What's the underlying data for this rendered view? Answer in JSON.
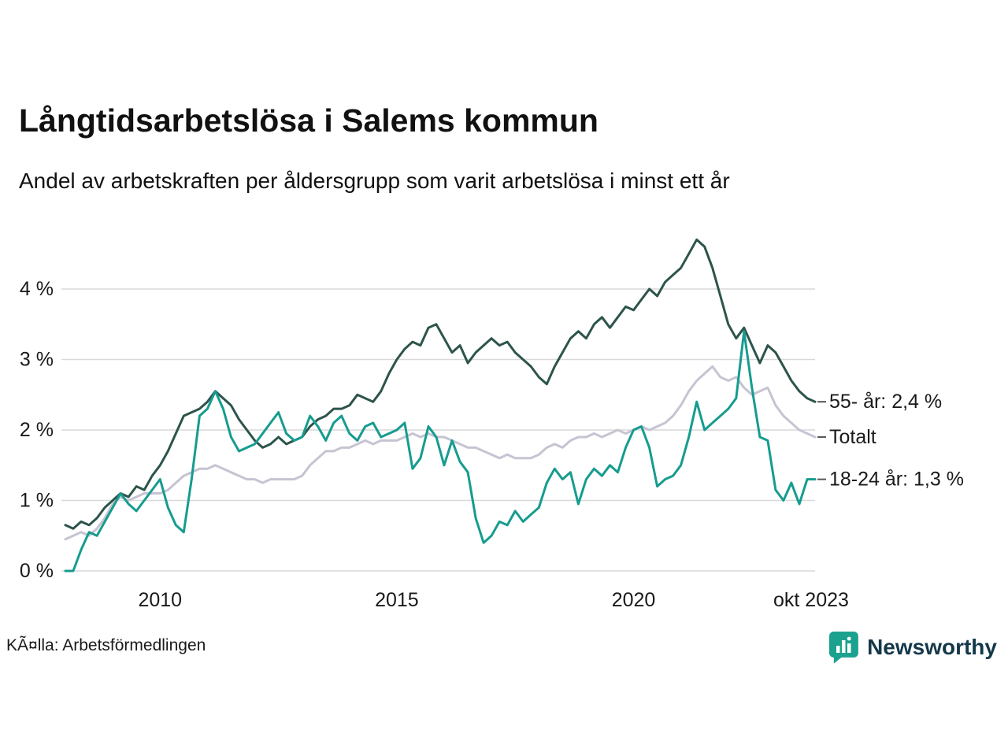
{
  "page": {
    "title": "Långtidsarbetslösa i Salems kommun",
    "subtitle": "Andel av arbetskraften per åldersgrupp som varit arbetslösa i minst ett år",
    "source": "KÃ¤lla: Arbetsförmedlingen",
    "brand": "Newsworthy"
  },
  "colors": {
    "series_total": "#c6c4d2",
    "series_55": "#2d544c",
    "series_18_24": "#169c8f",
    "grid": "#d9d9d9",
    "text": "#1a1a1a",
    "brand_teal": "#1ba28e",
    "brand_dark": "#14384a"
  },
  "chart_data": {
    "type": "line",
    "title": "Långtidsarbetslösa i Salems kommun",
    "subtitle": "Andel av arbetskraften per åldersgrupp som varit arbetslösa i minst ett år",
    "x_unit": "year_decimal_monthly",
    "x_start": 2008.0,
    "x_step": 0.166667,
    "x_range": [
      2008.0,
      2023.8333
    ],
    "ylim": [
      0,
      4.75
    ],
    "grid": true,
    "y_ticks": [
      {
        "value": 0,
        "label": "0 %"
      },
      {
        "value": 1,
        "label": "1 %"
      },
      {
        "value": 2,
        "label": "2 %"
      },
      {
        "value": 3,
        "label": "3 %"
      },
      {
        "value": 4,
        "label": "4 %"
      }
    ],
    "x_ticks": [
      {
        "value": 2010,
        "label": "2010"
      },
      {
        "value": 2015,
        "label": "2015"
      },
      {
        "value": 2020,
        "label": "2020"
      },
      {
        "value": 2023.75,
        "label": "okt 2023"
      }
    ],
    "series": [
      {
        "name": "Totalt",
        "color": "#c6c4d2",
        "end_label": "Totalt",
        "label_value": 1.9,
        "values": [
          0.45,
          0.5,
          0.55,
          0.5,
          0.6,
          0.75,
          0.95,
          1.05,
          1.0,
          1.05,
          1.1,
          1.1,
          1.1,
          1.15,
          1.25,
          1.35,
          1.4,
          1.45,
          1.45,
          1.5,
          1.45,
          1.4,
          1.35,
          1.3,
          1.3,
          1.25,
          1.3,
          1.3,
          1.3,
          1.3,
          1.35,
          1.5,
          1.6,
          1.7,
          1.7,
          1.75,
          1.75,
          1.8,
          1.85,
          1.8,
          1.85,
          1.85,
          1.85,
          1.9,
          1.95,
          1.9,
          1.95,
          1.9,
          1.9,
          1.85,
          1.8,
          1.75,
          1.75,
          1.7,
          1.65,
          1.6,
          1.65,
          1.6,
          1.6,
          1.6,
          1.65,
          1.75,
          1.8,
          1.75,
          1.85,
          1.9,
          1.9,
          1.95,
          1.9,
          1.95,
          2.0,
          1.95,
          2.0,
          2.05,
          2.0,
          2.05,
          2.1,
          2.2,
          2.35,
          2.55,
          2.7,
          2.8,
          2.9,
          2.75,
          2.7,
          2.75,
          2.6,
          2.5,
          2.55,
          2.6,
          2.35,
          2.2,
          2.1,
          2.0,
          1.95,
          1.9
        ]
      },
      {
        "name": "55- år",
        "color": "#2d544c",
        "end_label": "55- år: 2,4 %",
        "label_value": 2.4,
        "values": [
          0.65,
          0.6,
          0.7,
          0.65,
          0.75,
          0.9,
          1.0,
          1.1,
          1.05,
          1.2,
          1.15,
          1.35,
          1.5,
          1.7,
          1.95,
          2.2,
          2.25,
          2.3,
          2.4,
          2.55,
          2.45,
          2.35,
          2.15,
          2.0,
          1.85,
          1.75,
          1.8,
          1.9,
          1.8,
          1.85,
          1.9,
          2.05,
          2.15,
          2.2,
          2.3,
          2.3,
          2.35,
          2.5,
          2.45,
          2.4,
          2.55,
          2.8,
          3.0,
          3.15,
          3.25,
          3.2,
          3.45,
          3.5,
          3.3,
          3.1,
          3.2,
          2.95,
          3.1,
          3.2,
          3.3,
          3.2,
          3.25,
          3.1,
          3.0,
          2.9,
          2.75,
          2.65,
          2.9,
          3.1,
          3.3,
          3.4,
          3.3,
          3.5,
          3.6,
          3.45,
          3.6,
          3.75,
          3.7,
          3.85,
          4.0,
          3.9,
          4.1,
          4.2,
          4.3,
          4.5,
          4.7,
          4.6,
          4.3,
          3.9,
          3.5,
          3.3,
          3.45,
          3.2,
          2.95,
          3.2,
          3.1,
          2.9,
          2.7,
          2.55,
          2.45,
          2.4
        ]
      },
      {
        "name": "18-24 år",
        "color": "#169c8f",
        "end_label": "18-24 år: 1,3 %",
        "label_value": 1.3,
        "values": [
          0.0,
          0.0,
          0.3,
          0.55,
          0.5,
          0.7,
          0.9,
          1.1,
          0.95,
          0.85,
          1.0,
          1.15,
          1.3,
          0.9,
          0.65,
          0.55,
          1.3,
          2.2,
          2.3,
          2.55,
          2.3,
          1.9,
          1.7,
          1.75,
          1.8,
          1.95,
          2.1,
          2.25,
          1.95,
          1.85,
          1.9,
          2.2,
          2.05,
          1.85,
          2.1,
          2.2,
          1.95,
          1.85,
          2.05,
          2.1,
          1.9,
          1.95,
          2.0,
          2.1,
          1.45,
          1.6,
          2.05,
          1.9,
          1.5,
          1.85,
          1.55,
          1.4,
          0.75,
          0.4,
          0.5,
          0.7,
          0.65,
          0.85,
          0.7,
          0.8,
          0.9,
          1.25,
          1.45,
          1.3,
          1.4,
          0.95,
          1.3,
          1.45,
          1.35,
          1.5,
          1.4,
          1.75,
          2.0,
          2.05,
          1.75,
          1.2,
          1.3,
          1.35,
          1.5,
          1.9,
          2.4,
          2.0,
          2.1,
          2.2,
          2.3,
          2.45,
          3.4,
          2.6,
          1.9,
          1.85,
          1.15,
          1.0,
          1.25,
          0.95,
          1.3,
          1.3
        ]
      }
    ]
  }
}
